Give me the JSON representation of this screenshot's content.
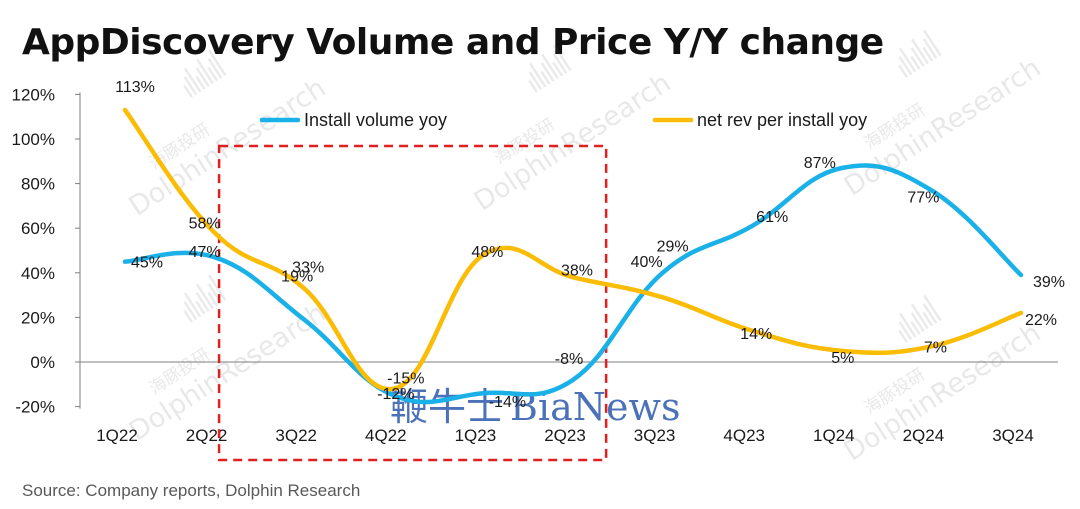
{
  "title": "AppDiscovery Volume and Price Y/Y change",
  "source": "Source: Company reports, Dolphin Research",
  "watermark": {
    "brand": "BiaNews",
    "brand_cn": "鞭牛士",
    "research": "DolphinResearch",
    "research_cn": "海豚投研"
  },
  "colors": {
    "install": "#1ab0e8",
    "netrev": "#fbbc05",
    "highlight_box": "#e02020",
    "axis": "#7f7f7f"
  },
  "chart_data": {
    "type": "line",
    "title": "AppDiscovery Volume and Price Y/Y change",
    "categories": [
      "1Q22",
      "2Q22",
      "3Q22",
      "4Q22",
      "1Q23",
      "2Q23",
      "3Q23",
      "4Q23",
      "1Q24",
      "2Q24",
      "3Q24"
    ],
    "ylim": [
      -20,
      120
    ],
    "yticks": [
      -20,
      0,
      20,
      40,
      60,
      80,
      100,
      120
    ],
    "ytick_labels": [
      "-20%",
      "0%",
      "20%",
      "40%",
      "60%",
      "80%",
      "100%",
      "120%"
    ],
    "legend_position": "top",
    "grid": false,
    "highlight_range": [
      "3Q22",
      "2Q23"
    ],
    "series": [
      {
        "name": "Install volume yoy",
        "color": "#1ab0e8",
        "values": [
          45,
          47,
          19,
          -15,
          -14,
          -8,
          40,
          61,
          87,
          77,
          39
        ],
        "labels": [
          "45%",
          "47%",
          "19%",
          "-15%",
          "-14%",
          "-8%",
          "40%",
          "61%",
          "87%",
          "77%",
          "39%"
        ]
      },
      {
        "name": "net rev per install yoy",
        "color": "#fbbc05",
        "values": [
          113,
          58,
          33,
          -12,
          48,
          38,
          29,
          14,
          5,
          7,
          22
        ],
        "labels": [
          "113%",
          "58%",
          "33%",
          "-12%",
          "48%",
          "38%",
          "29%",
          "14%",
          "5%",
          "7%",
          "22%"
        ]
      }
    ]
  }
}
